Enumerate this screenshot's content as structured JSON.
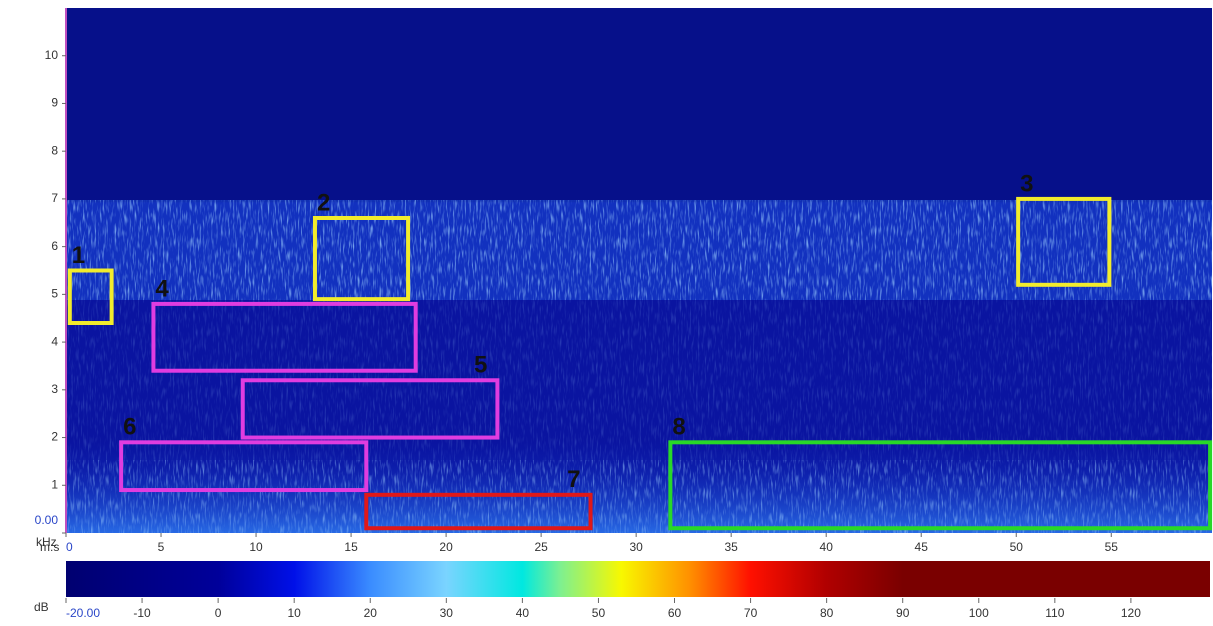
{
  "chart_data": {
    "type": "spectrogram",
    "y_label": "kHz",
    "x_label": "m:s",
    "colorbar_label": "dB",
    "xlim": [
      0,
      60.3
    ],
    "ylim": [
      0,
      11
    ],
    "xticks": [
      0,
      5,
      10,
      15,
      20,
      25,
      30,
      35,
      40,
      45,
      50,
      55
    ],
    "yticks": [
      {
        "value": 0,
        "label": "0.00"
      },
      1,
      2,
      3,
      4,
      5,
      6,
      7,
      8,
      9,
      10
    ],
    "clim": [
      -20,
      130.4
    ],
    "cticks": [
      {
        "value": -20,
        "label": "-20.00"
      },
      -10,
      0,
      10,
      20,
      30,
      40,
      50,
      60,
      70,
      80,
      90,
      100,
      110,
      120
    ],
    "colormap": [
      {
        "value": -20,
        "color": "#000070"
      },
      {
        "value": 0,
        "color": "#00009a"
      },
      {
        "value": 10,
        "color": "#0010e8"
      },
      {
        "value": 20,
        "color": "#3a8cff"
      },
      {
        "value": 30,
        "color": "#7ad4ff"
      },
      {
        "value": 40,
        "color": "#00e8e0"
      },
      {
        "value": 45,
        "color": "#7ef090"
      },
      {
        "value": 53,
        "color": "#f8f800"
      },
      {
        "value": 62,
        "color": "#ff9000"
      },
      {
        "value": 70,
        "color": "#ff1000"
      },
      {
        "value": 80,
        "color": "#b00000"
      },
      {
        "value": 90,
        "color": "#7a0000"
      },
      {
        "value": 130.4,
        "color": "#7a0000"
      }
    ],
    "boxes": [
      {
        "label": "1",
        "color": "#f2ec2c",
        "x0": 0.2,
        "x1": 2.4,
        "y0": 4.4,
        "y1": 5.5,
        "label_side": "left"
      },
      {
        "label": "2",
        "color": "#f2ec2c",
        "x0": 13.1,
        "x1": 18.0,
        "y0": 4.9,
        "y1": 6.6,
        "label_side": "left"
      },
      {
        "label": "3",
        "color": "#f2ec2c",
        "x0": 50.1,
        "x1": 54.9,
        "y0": 5.2,
        "y1": 7.0,
        "label_side": "left"
      },
      {
        "label": "4",
        "color": "#e03ce0",
        "x0": 4.6,
        "x1": 18.4,
        "y0": 3.4,
        "y1": 4.8,
        "label_side": "left"
      },
      {
        "label": "5",
        "color": "#e03ce0",
        "x0": 9.3,
        "x1": 22.7,
        "y0": 2.0,
        "y1": 3.2,
        "label_side": "right"
      },
      {
        "label": "6",
        "color": "#e03ce0",
        "x0": 2.9,
        "x1": 15.8,
        "y0": 0.9,
        "y1": 1.9,
        "label_side": "left"
      },
      {
        "label": "7",
        "color": "#e01818",
        "x0": 15.8,
        "x1": 27.6,
        "y0": 0.1,
        "y1": 0.8,
        "label_side": "right"
      },
      {
        "label": "8",
        "color": "#28d828",
        "x0": 31.8,
        "x1": 60.2,
        "y0": 0.1,
        "y1": 1.9,
        "label_side": "left"
      }
    ]
  }
}
